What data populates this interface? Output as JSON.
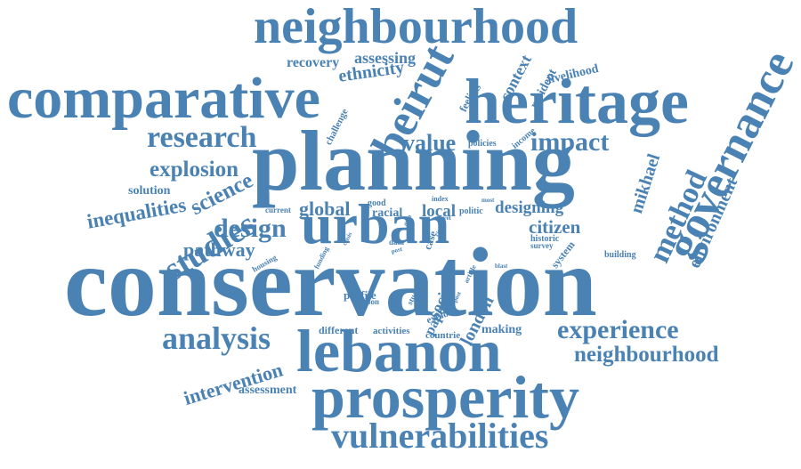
{
  "cloud": {
    "color": "#4a82b4",
    "words": [
      "conservation",
      "planning",
      "heritage",
      "comparative",
      "neighbourhood",
      "urban",
      "lebanon",
      "prosperity",
      "governance",
      "beirut",
      "vulnerabilities",
      "analysis",
      "experience",
      "neighbourhood",
      "research",
      "design",
      "studies",
      "method",
      "impact",
      "value",
      "explosion",
      "science",
      "inequalities",
      "solution",
      "global",
      "pathway",
      "intervention",
      "assessment",
      "recovery",
      "ethnicity",
      "assessing",
      "context",
      "resident",
      "livelihood",
      "environment",
      "mikhael",
      "local",
      "designing",
      "citizen",
      "london",
      "social",
      "paper",
      "making",
      "activities",
      "different",
      "countrie",
      "profile",
      "person",
      "challenge",
      "feeling",
      "policies",
      "income",
      "current",
      "good",
      "racial",
      "index",
      "politic",
      "most",
      "case",
      "historic",
      "survey",
      "system",
      "building",
      "explore",
      "study",
      "housing",
      "funding",
      "data",
      "crisis",
      "life",
      "area",
      "level",
      "city",
      "post",
      "article",
      "blast",
      "post"
    ]
  }
}
